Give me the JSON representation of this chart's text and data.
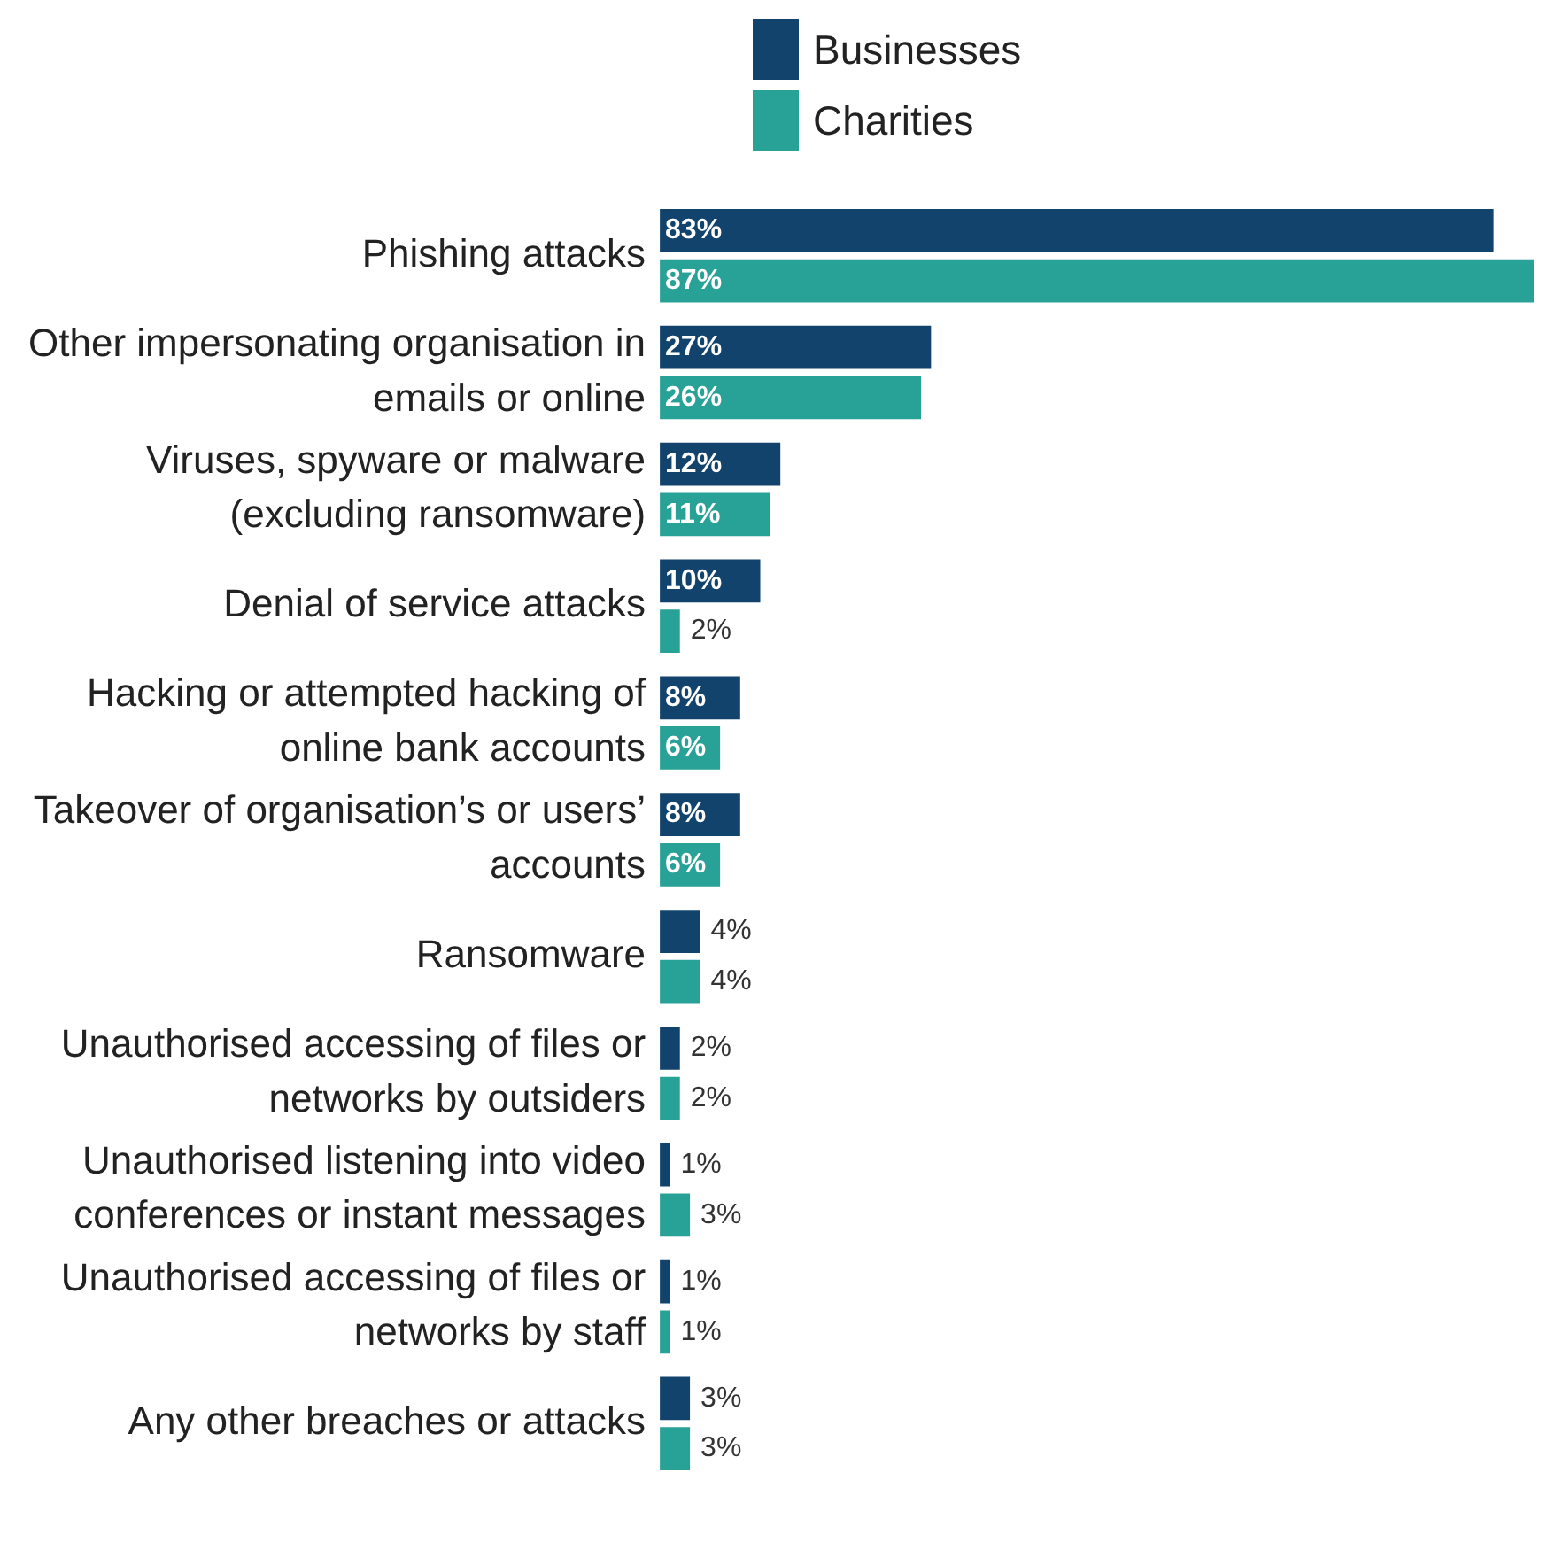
{
  "chart_data": {
    "type": "bar",
    "orientation": "horizontal",
    "categories": [
      "Phishing attacks",
      "Other impersonating organisation in emails or online",
      "Viruses, spyware or malware (excluding ransomware)",
      "Denial of service attacks",
      "Hacking or attempted hacking of online bank accounts",
      "Takeover of organisation’s or users’ accounts",
      "Ransomware",
      "Unauthorised accessing of files or networks by outsiders",
      "Unauthorised listening into video conferences or instant messages",
      "Unauthorised accessing of files or networks by staff",
      "Any other breaches or attacks"
    ],
    "series": [
      {
        "name": "Businesses",
        "color": "#12436d",
        "values": [
          83,
          27,
          12,
          10,
          8,
          8,
          4,
          2,
          1,
          1,
          3
        ],
        "value_labels": [
          "83%",
          "27%",
          "12%",
          "10%",
          "8%",
          "8%",
          "4%",
          "2%",
          "1%",
          "1%",
          "3%"
        ]
      },
      {
        "name": "Charities",
        "color": "#28a197",
        "values": [
          87,
          26,
          11,
          2,
          6,
          6,
          4,
          2,
          3,
          1,
          3
        ],
        "value_labels": [
          "87%",
          "26%",
          "11%",
          "2%",
          "6%",
          "6%",
          "4%",
          "2%",
          "3%",
          "1%",
          "3%"
        ]
      }
    ],
    "legend": "top",
    "tick_labels": "y",
    "grid": false
  }
}
